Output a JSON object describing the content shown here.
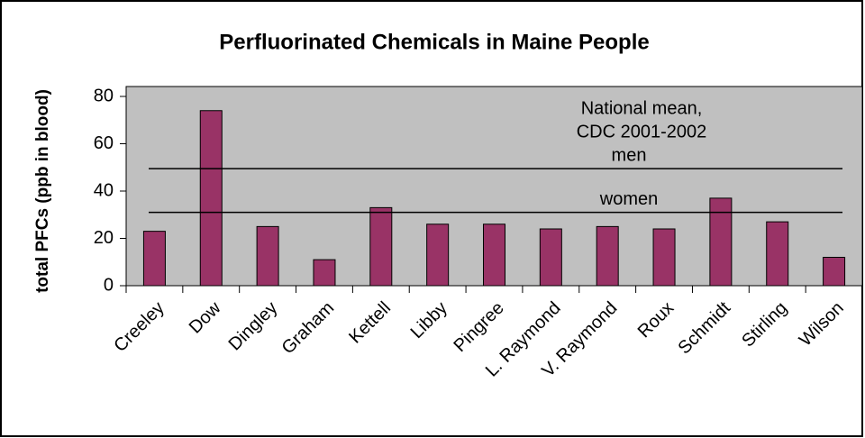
{
  "chart_data": {
    "type": "bar",
    "title": "Perfluorinated Chemicals in Maine People",
    "y_axis_label": "total PFCs (ppb in blood)",
    "categories": [
      "Creeley",
      "Dow",
      "Dingley",
      "Graham",
      "Kettell",
      "Libby",
      "Pingree",
      "L. Raymond",
      "V. Raymond",
      "Roux",
      "Schmidt",
      "Stirling",
      "Wilson"
    ],
    "values": [
      23,
      74,
      25,
      11,
      33,
      26,
      26,
      24,
      25,
      24,
      37,
      27,
      12
    ],
    "color": "#993366",
    "ylim": [
      0,
      80
    ],
    "yticks": [
      0,
      20,
      40,
      60,
      80
    ],
    "grid": false,
    "annotation": [
      "National mean,",
      "CDC 2001-2002"
    ],
    "reference_lines": [
      {
        "label": "men",
        "value": 49.5
      },
      {
        "label": "women",
        "value": 31
      }
    ]
  }
}
